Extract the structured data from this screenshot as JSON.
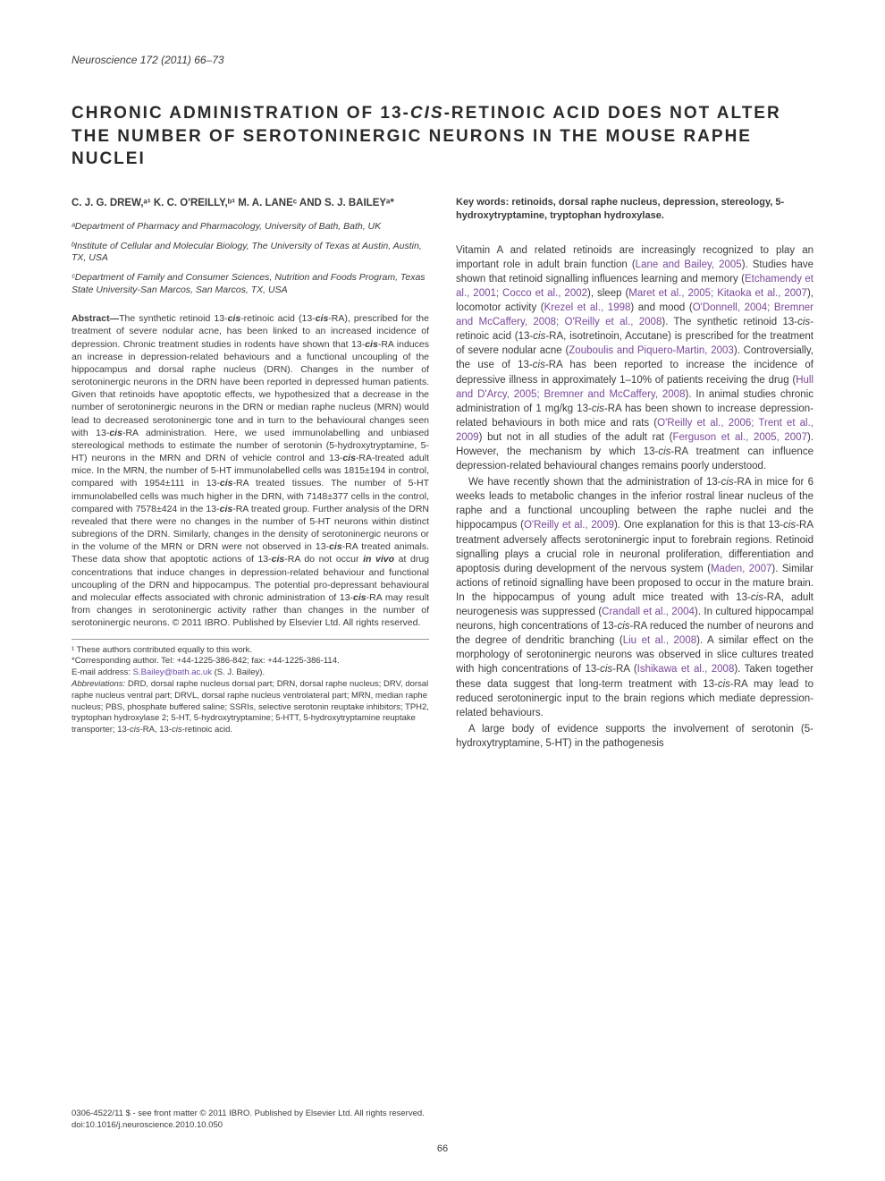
{
  "journal": {
    "name": "Neuroscience",
    "citation": "172 (2011) 66–73"
  },
  "title_pre": "CHRONIC ADMINISTRATION OF 13-",
  "title_cis": "CIS",
  "title_post": "-RETINOIC ACID DOES NOT ALTER THE NUMBER OF SEROTONINERGIC NEURONS IN THE MOUSE RAPHE NUCLEI",
  "authors": "C. J. G. DREW,ᵃ¹ K. C. O'REILLY,ᵇ¹ M. A. LANEᶜ AND S. J. BAILEYᵃ*",
  "affiliations": [
    "ᵃDepartment of Pharmacy and Pharmacology, University of Bath, Bath, UK",
    "ᵇInstitute of Cellular and Molecular Biology, The University of Texas at Austin, Austin, TX, USA",
    "ᶜDepartment of Family and Consumer Sciences, Nutrition and Foods Program, Texas State University-San Marcos, San Marcos, TX, USA"
  ],
  "abstract_label": "Abstract—",
  "abstract_body_1": "The synthetic retinoid 13-",
  "abstract_body_2": "-retinoic acid (13-",
  "abstract_body_3": "-RA), prescribed for the treatment of severe nodular acne, has been linked to an increased incidence of depression. Chronic treatment studies in rodents have shown that 13-",
  "abstract_body_4": "-RA induces an increase in depression-related behaviours and a functional uncoupling of the hippocampus and dorsal raphe nucleus (DRN). Changes in the number of serotoninergic neurons in the DRN have been reported in depressed human patients. Given that retinoids have apoptotic effects, we hypothesized that a decrease in the number of serotoninergic neurons in the DRN or median raphe nucleus (MRN) would lead to decreased serotoninergic tone and in turn to the behavioural changes seen with 13-",
  "abstract_body_5": "-RA administration. Here, we used immunolabelling and unbiased stereological methods to estimate the number of serotonin (5-hydroxytryptamine, 5-HT) neurons in the MRN and DRN of vehicle control and 13-",
  "abstract_body_6": "-RA-treated adult mice. In the MRN, the number of 5-HT immunolabelled cells was 1815±194 in control, compared with 1954±111 in 13-",
  "abstract_body_7": "-RA treated tissues. The number of 5-HT immunolabelled cells was much higher in the DRN, with 7148±377 cells in the control, compared with 7578±424 in the 13-",
  "abstract_body_8": "-RA treated group. Further analysis of the DRN revealed that there were no changes in the number of 5-HT neurons within distinct subregions of the DRN. Similarly, changes in the density of serotoninergic neurons or in the volume of the MRN or DRN were not observed in 13-",
  "abstract_body_9": "-RA treated animals. These data show that apoptotic actions of 13-",
  "abstract_body_10": "-RA do not occur ",
  "abstract_invivo": "in vivo",
  "abstract_body_11": " at drug concentrations that induce changes in depression-related behaviour and functional uncoupling of the DRN and hippocampus. The potential pro-depressant behavioural and molecular effects associated with chronic administration of 13-",
  "abstract_body_12": "-RA may result from changes in serotoninergic activity rather than changes in the number of serotoninergic neurons. © 2011 IBRO. Published by Elsevier Ltd. All rights reserved.",
  "cis": "cis",
  "footnotes": {
    "equal": "¹ These authors contributed equally to this work.",
    "corresponding": "*Corresponding author. Tel: +44-1225-386-842; fax: +44-1225-386-114.",
    "email_label": "E-mail address: ",
    "email": "S.Bailey@bath.ac.uk",
    "email_suffix": " (S. J. Bailey).",
    "abbrev_label": "Abbreviations:",
    "abbrev_body": " DRD, dorsal raphe nucleus dorsal part; DRN, dorsal raphe nucleus; DRV, dorsal raphe nucleus ventral part; DRVL, dorsal raphe nucleus ventrolateral part; MRN, median raphe nucleus; PBS, phosphate buffered saline; SSRIs, selective serotonin reuptake inhibitors; TPH2, tryptophan hydroxylase 2; 5-HT, 5-hydroxytryptamine; 5-HTT, 5-hydroxytryptamine reuptake transporter; 13-",
    "abbrev_tail": "-RA, 13-",
    "abbrev_tail2": "-retinoic acid."
  },
  "keywords": "Key words: retinoids, dorsal raphe nucleus, depression, stereology, 5-hydroxytryptamine, tryptophan hydroxylase.",
  "p1": {
    "t1": "Vitamin A and related retinoids are increasingly recognized to play an important role in adult brain function (",
    "r1": "Lane and Bailey, 2005",
    "t2": "). Studies have shown that retinoid signalling influences learning and memory (",
    "r2": "Etchamendy et al., 2001; Cocco et al., 2002",
    "t3": "), sleep (",
    "r3": "Maret et al., 2005; Kitaoka et al., 2007",
    "t4": "), locomotor activity (",
    "r4": "Krezel et al., 1998",
    "t5": ") and mood (",
    "r5": "O'Donnell, 2004; Bremner and McCaffery, 2008; O'Reilly et al., 2008",
    "t6": "). The synthetic retinoid 13-",
    "t7": "-retinoic acid (13-",
    "t8": "-RA, isotretinoin, Accutane) is prescribed for the treatment of severe nodular acne (",
    "r6": "Zouboulis and Piquero-Martin, 2003",
    "t9": "). Controversially, the use of 13-",
    "t10": "-RA has been reported to increase the incidence of depressive illness in approximately 1–10% of patients receiving the drug (",
    "r7": "Hull and D'Arcy, 2005; Bremner and McCaffery, 2008",
    "t11": "). In animal studies chronic administration of 1 mg/kg 13-",
    "t12": "-RA has been shown to increase depression-related behaviours in both mice and rats (",
    "r8": "O'Reilly et al., 2006; Trent et al., 2009",
    "t13": ") but not in all studies of the adult rat (",
    "r9": "Ferguson et al., 2005, 2007",
    "t14": "). However, the mechanism by which 13-",
    "t15": "-RA treatment can influence depression-related behavioural changes remains poorly understood."
  },
  "p2": {
    "t1": "We have recently shown that the administration of 13-",
    "t2": "-RA in mice for 6 weeks leads to metabolic changes in the inferior rostral linear nucleus of the raphe and a functional uncoupling between the raphe nuclei and the hippocampus (",
    "r1": "O'Reilly et al., 2009",
    "t3": "). One explanation for this is that 13-",
    "t4": "-RA treatment adversely affects serotoninergic input to forebrain regions. Retinoid signalling plays a crucial role in neuronal proliferation, differentiation and apoptosis during development of the nervous system (",
    "r2": "Maden, 2007",
    "t5": "). Similar actions of retinoid signalling have been proposed to occur in the mature brain. In the hippocampus of young adult mice treated with 13-",
    "t6": "-RA, adult neurogenesis was suppressed (",
    "r3": "Crandall et al., 2004",
    "t7": "). In cultured hippocampal neurons, high concentrations of 13-",
    "t8": "-RA reduced the number of neurons and the degree of dendritic branching (",
    "r4": "Liu et al., 2008",
    "t9": "). A similar effect on the morphology of serotoninergic neurons was observed in slice cultures treated with high concentrations of 13-",
    "t10": "-RA (",
    "r5": "Ishikawa et al., 2008",
    "t11": "). Taken together these data suggest that long-term treatment with 13-",
    "t12": "-RA may lead to reduced serotoninergic input to the brain regions which mediate depression-related behaviours."
  },
  "p3": "A large body of evidence supports the involvement of serotonin (5-hydroxytryptamine, 5-HT) in the pathogenesis",
  "bottom": {
    "line1": "0306-4522/11 $ - see front matter © 2011 IBRO. Published by Elsevier Ltd. All rights reserved.",
    "line2": "doi:10.1016/j.neuroscience.2010.10.050"
  },
  "page": "66",
  "colors": {
    "ref": "#7a4a9a",
    "text": "#3a3a3a"
  }
}
